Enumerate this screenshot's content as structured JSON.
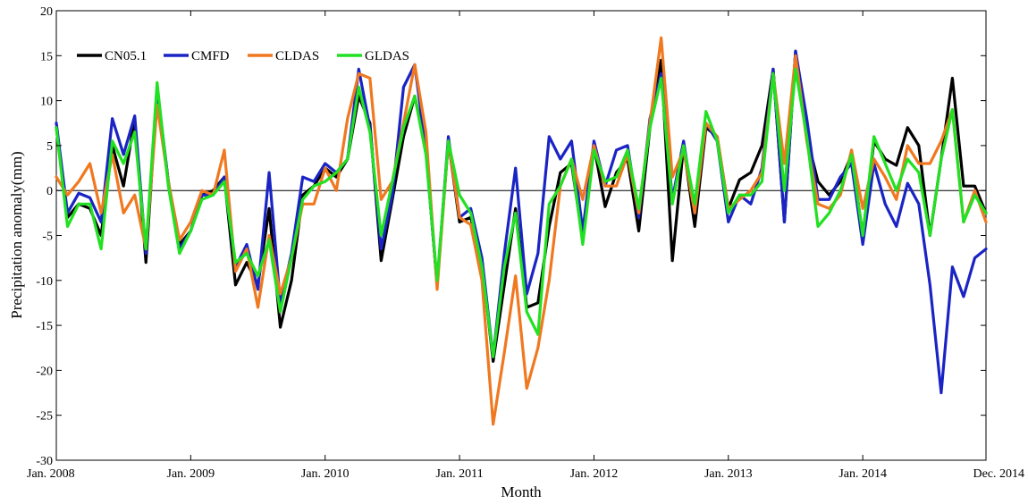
{
  "chart_data": {
    "type": "line",
    "xlabel": "Month",
    "ylabel": "Precipitation anomaly(mm)",
    "ylim": [
      -30,
      20
    ],
    "yticks": [
      -30,
      -25,
      -20,
      -15,
      -10,
      -5,
      0,
      5,
      10,
      15,
      20
    ],
    "xlim": [
      0,
      83
    ],
    "xticks": [
      {
        "x": 0,
        "label": "Jan. 2008"
      },
      {
        "x": 12,
        "label": "Jan. 2009"
      },
      {
        "x": 24,
        "label": "Jan. 2010"
      },
      {
        "x": 36,
        "label": "Jan. 2011"
      },
      {
        "x": 48,
        "label": "Jan. 2012"
      },
      {
        "x": 60,
        "label": "Jan. 2013"
      },
      {
        "x": 72,
        "label": "Jan. 2014"
      },
      {
        "x": 83,
        "label": "Dec. 2014"
      }
    ],
    "grid": false,
    "zero_line": true,
    "legend_position": "top-left",
    "series": [
      {
        "name": "CN05.1",
        "color": "#000000",
        "values": [
          7.0,
          -3.0,
          -1.5,
          -2.0,
          -5.0,
          5.0,
          0.5,
          8.0,
          -8.0,
          11.0,
          1.0,
          -6.0,
          -4.5,
          -0.5,
          0.0,
          1.5,
          -10.5,
          -8.0,
          -10.5,
          -2.0,
          -15.2,
          -10.0,
          -0.5,
          0.5,
          2.5,
          1.5,
          3.5,
          10.5,
          7.5,
          -7.8,
          -1.0,
          6.0,
          10.5,
          4.5,
          -10.5,
          5.5,
          -3.5,
          -3.0,
          -8.0,
          -19.0,
          -10.5,
          -2.0,
          -13.0,
          -12.5,
          -4.0,
          2.0,
          3.0,
          -5.5,
          5.0,
          -1.8,
          2.0,
          3.5,
          -4.5,
          7.0,
          14.5,
          -7.8,
          5.0,
          -4.0,
          7.0,
          6.0,
          -2.0,
          1.2,
          2.0,
          5.0,
          13.5,
          -3.5,
          15.5,
          6.0,
          1.0,
          -0.5,
          1.0,
          4.0,
          -5.0,
          5.5,
          3.5,
          2.8,
          7.0,
          5.0,
          -5.0,
          3.5,
          12.5,
          0.5,
          0.5,
          -2.5
        ]
      },
      {
        "name": "CMFD",
        "color": "#1a24c4",
        "values": [
          7.5,
          -2.5,
          -0.3,
          -0.8,
          -3.5,
          8.0,
          4.0,
          8.3,
          -7.0,
          11.5,
          1.0,
          -6.5,
          -4.5,
          -0.5,
          -0.5,
          1.5,
          -8.5,
          -6.0,
          -11.0,
          2.0,
          -12.5,
          -7.0,
          1.5,
          1.0,
          3.0,
          2.0,
          3.5,
          13.5,
          7.0,
          -6.5,
          -0.5,
          11.5,
          14.0,
          4.5,
          -10.5,
          6.0,
          -3.0,
          -2.0,
          -7.5,
          -18.5,
          -7.0,
          2.5,
          -11.5,
          -7.0,
          6.0,
          3.5,
          5.5,
          -4.5,
          5.5,
          0.5,
          4.5,
          5.0,
          -3.0,
          8.0,
          13.0,
          -1.0,
          5.5,
          -2.5,
          7.5,
          5.5,
          -3.5,
          -0.5,
          -1.5,
          2.5,
          13.5,
          -3.5,
          15.5,
          8.0,
          -1.0,
          -1.0,
          1.5,
          3.0,
          -6.0,
          3.0,
          -1.5,
          -4.0,
          0.8,
          -1.5,
          -10.5,
          -22.5,
          -8.5,
          -11.8,
          -7.5,
          -6.5
        ]
      },
      {
        "name": "CLDAS",
        "color": "#f07820",
        "values": [
          1.5,
          -0.5,
          1.0,
          3.0,
          -2.5,
          4.0,
          -2.5,
          -0.5,
          -6.5,
          9.5,
          1.0,
          -5.5,
          -3.5,
          0.0,
          -0.5,
          4.5,
          -9.0,
          -6.5,
          -13.0,
          -5.0,
          -11.5,
          -7.5,
          -1.5,
          -1.5,
          2.5,
          0.0,
          8.0,
          13.0,
          12.5,
          -1.0,
          1.0,
          7.5,
          14.0,
          6.5,
          -11.0,
          5.5,
          -3.0,
          -3.8,
          -10.0,
          -26.0,
          -18.0,
          -9.5,
          -22.0,
          -17.5,
          -10.0,
          0.5,
          3.5,
          -1.0,
          5.0,
          0.5,
          0.5,
          4.0,
          -2.5,
          7.5,
          17.0,
          1.5,
          4.5,
          -2.5,
          7.5,
          6.0,
          -2.0,
          -1.0,
          0.0,
          2.0,
          13.0,
          3.0,
          15.0,
          5.5,
          -1.5,
          -2.0,
          -0.5,
          4.5,
          -2.0,
          3.5,
          1.5,
          -1.0,
          5.0,
          3.0,
          3.0,
          5.5,
          9.0,
          -3.5,
          0.0,
          -3.5
        ]
      },
      {
        "name": "GLDAS",
        "color": "#22e022",
        "values": [
          7.0,
          -4.0,
          -1.5,
          -1.5,
          -6.5,
          5.5,
          3.0,
          6.5,
          -6.5,
          12.0,
          0.5,
          -7.0,
          -4.5,
          -1.0,
          -0.5,
          1.0,
          -8.0,
          -7.0,
          -9.5,
          -5.5,
          -13.5,
          -7.5,
          -1.0,
          0.5,
          1.0,
          2.0,
          3.5,
          11.5,
          6.5,
          -5.0,
          1.0,
          7.0,
          10.5,
          4.0,
          -10.0,
          5.5,
          -0.5,
          -2.5,
          -8.5,
          -18.5,
          -8.5,
          -2.5,
          -13.5,
          -16.0,
          -1.5,
          0.5,
          3.5,
          -6.0,
          4.5,
          1.0,
          1.5,
          4.5,
          -2.0,
          7.0,
          12.5,
          -1.5,
          5.0,
          -1.5,
          8.8,
          5.5,
          -2.5,
          -0.5,
          -0.5,
          1.0,
          13.0,
          0.0,
          13.5,
          6.0,
          -4.0,
          -2.5,
          0.0,
          4.0,
          -5.0,
          6.0,
          3.0,
          0.0,
          3.5,
          2.0,
          -5.0,
          3.5,
          9.0,
          -3.5,
          -0.5,
          -2.5
        ]
      }
    ]
  }
}
